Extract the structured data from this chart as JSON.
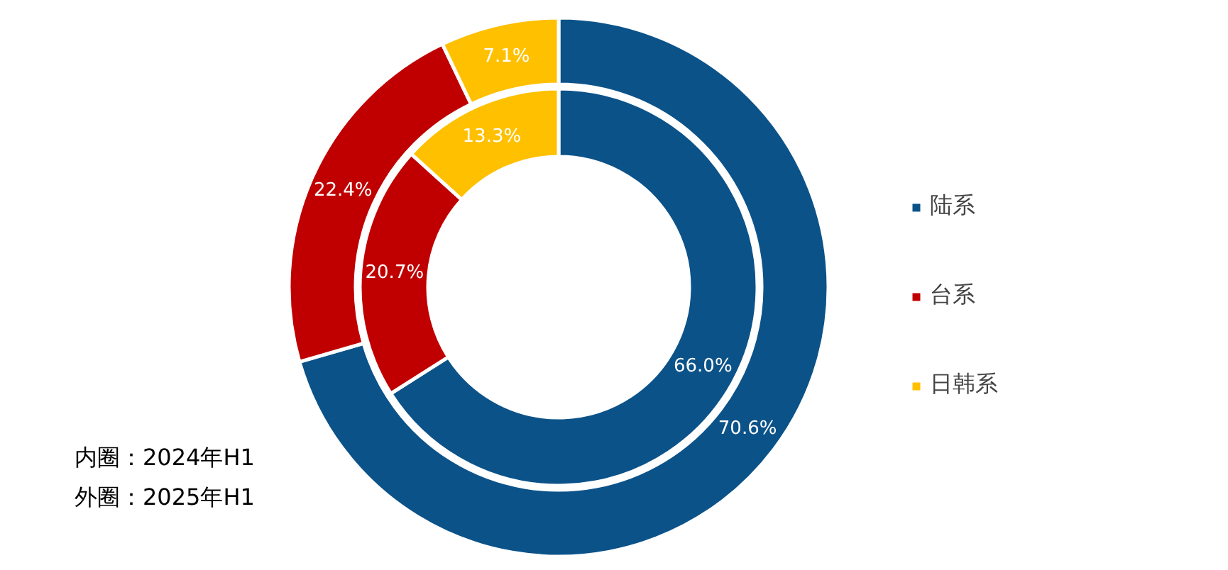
{
  "chart_data": {
    "type": "donut",
    "categories": [
      "陆系",
      "台系",
      "日韩系"
    ],
    "colors": [
      "#0b5289",
      "#c00000",
      "#ffc000"
    ],
    "series": [
      {
        "values": [
          66.0,
          20.7,
          13.3
        ],
        "value_labels": [
          "66.0%",
          "20.7%",
          "13.3%"
        ]
      },
      {
        "values": [
          70.6,
          22.4,
          7.1
        ],
        "value_labels": [
          "70.6%",
          "22.4%",
          "7.1%"
        ]
      }
    ],
    "annotations": [
      "内圈：2024年H1",
      "外圈：2025年H1"
    ],
    "legend": "right"
  }
}
